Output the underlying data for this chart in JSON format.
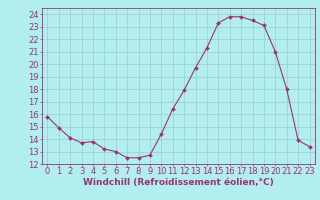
{
  "x": [
    0,
    1,
    2,
    3,
    4,
    5,
    6,
    7,
    8,
    9,
    10,
    11,
    12,
    13,
    14,
    15,
    16,
    17,
    18,
    19,
    20,
    21,
    22,
    23
  ],
  "y": [
    15.8,
    14.9,
    14.1,
    13.7,
    13.8,
    13.2,
    13.0,
    12.5,
    12.5,
    12.7,
    14.4,
    16.4,
    17.9,
    19.7,
    21.3,
    23.3,
    23.8,
    23.8,
    23.5,
    23.1,
    21.0,
    18.0,
    13.9,
    13.4
  ],
  "line_color": "#993377",
  "marker": "D",
  "marker_size": 2.0,
  "bg_color": "#b2eeee",
  "grid_color": "#99cccc",
  "xlabel": "Windchill (Refroidissement éolien,°C)",
  "xlabel_fontsize": 6.5,
  "tick_fontsize": 6.0,
  "ylim": [
    12,
    24.5
  ],
  "xlim": [
    -0.5,
    23.5
  ],
  "yticks": [
    12,
    13,
    14,
    15,
    16,
    17,
    18,
    19,
    20,
    21,
    22,
    23,
    24
  ],
  "xticks": [
    0,
    1,
    2,
    3,
    4,
    5,
    6,
    7,
    8,
    9,
    10,
    11,
    12,
    13,
    14,
    15,
    16,
    17,
    18,
    19,
    20,
    21,
    22,
    23
  ]
}
